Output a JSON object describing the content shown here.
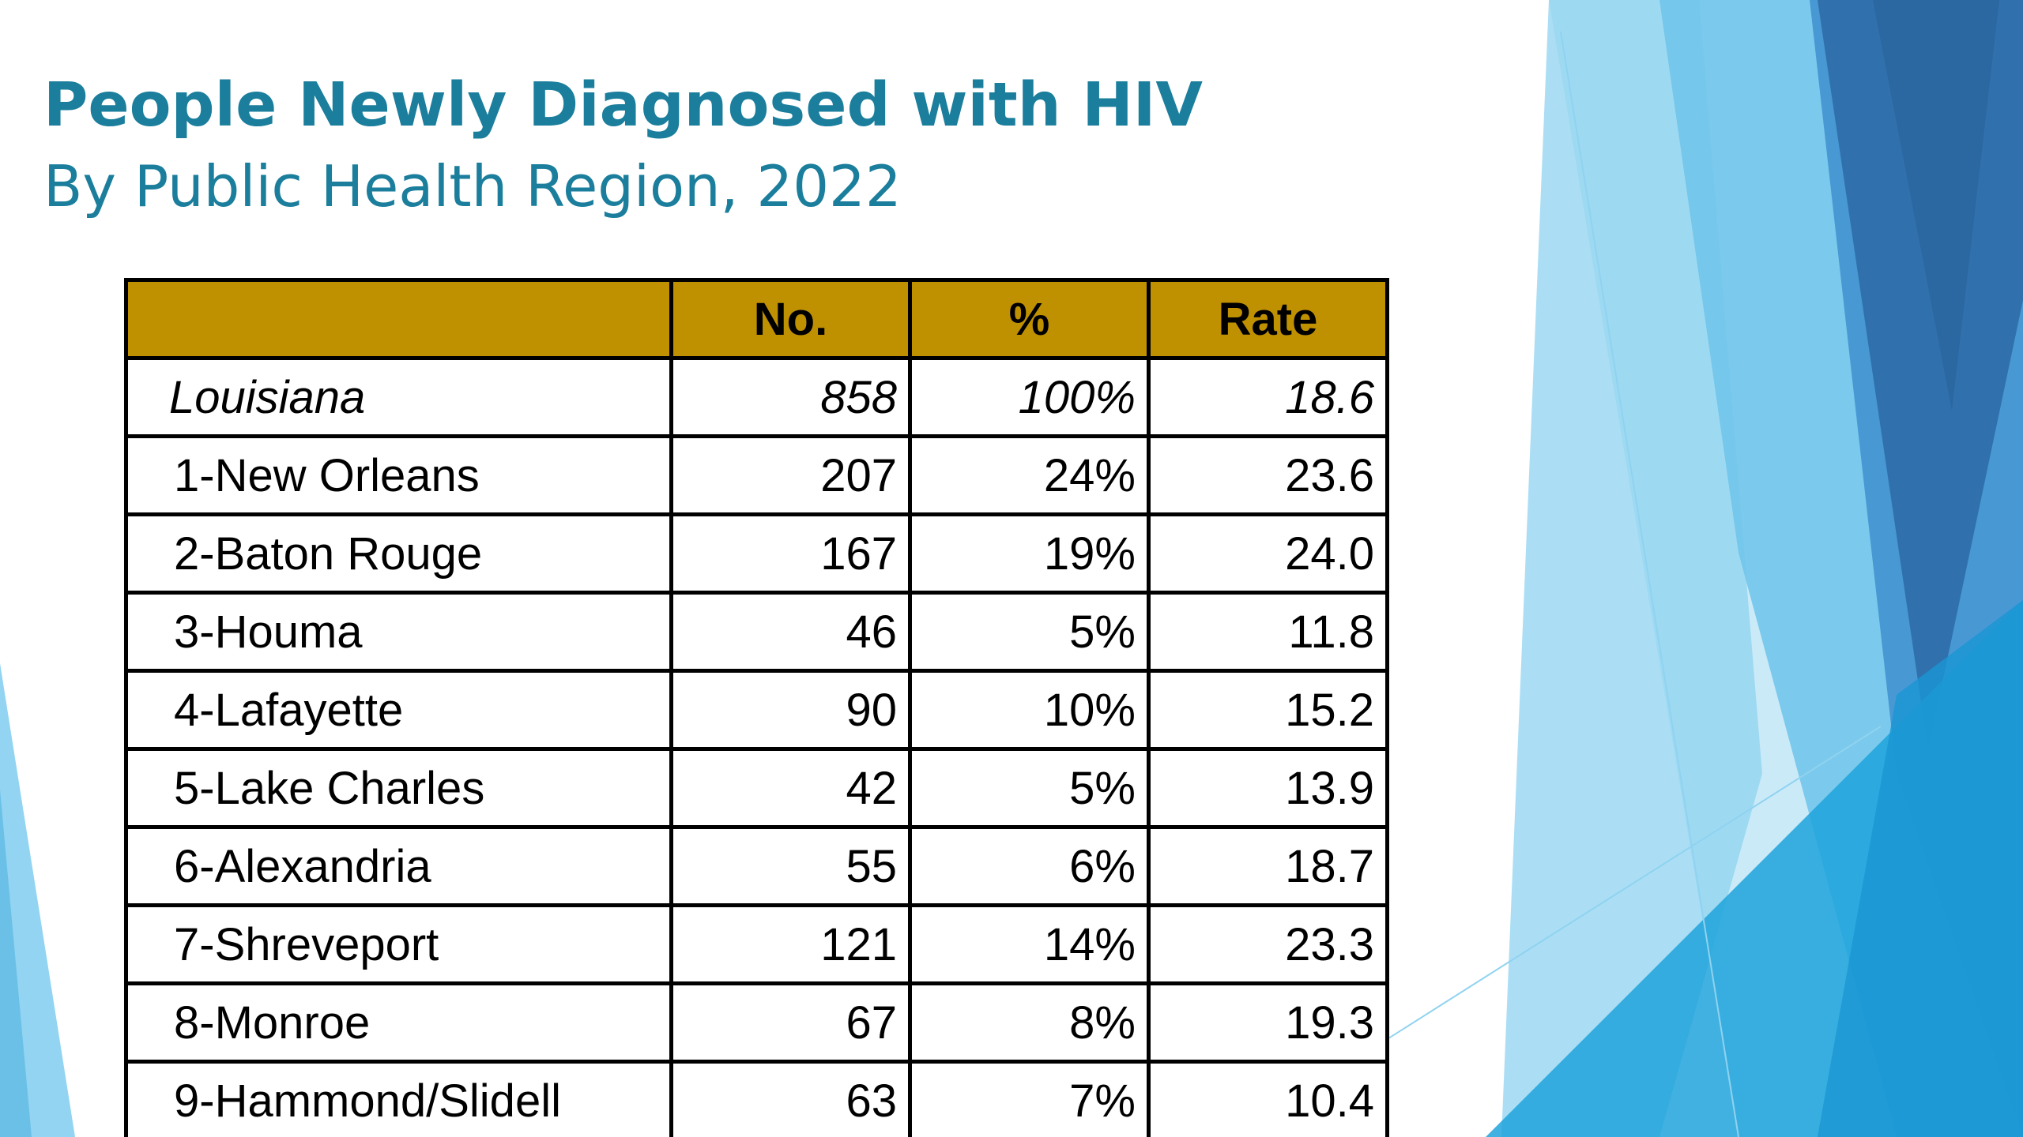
{
  "slide": {
    "title": "People Newly Diagnosed with HIV",
    "subtitle": "By Public Health Region, 2022",
    "colors": {
      "title": "#1a7e9c",
      "header_fill": "#bf9000",
      "decor_blue": "#2e75b6"
    }
  },
  "table": {
    "headers": [
      "",
      "No.",
      "%",
      "Rate"
    ],
    "total": {
      "region": "Louisiana",
      "no": "858",
      "pct": "100%",
      "rate": "18.6"
    },
    "rows": [
      {
        "region": "1-New Orleans",
        "no": "207",
        "pct": "24%",
        "rate": "23.6"
      },
      {
        "region": "2-Baton Rouge",
        "no": "167",
        "pct": "19%",
        "rate": "24.0"
      },
      {
        "region": "3-Houma",
        "no": "46",
        "pct": "5%",
        "rate": "11.8"
      },
      {
        "region": "4-Lafayette",
        "no": "90",
        "pct": "10%",
        "rate": "15.2"
      },
      {
        "region": "5-Lake Charles",
        "no": "42",
        "pct": "5%",
        "rate": "13.9"
      },
      {
        "region": "6-Alexandria",
        "no": "55",
        "pct": "6%",
        "rate": "18.7"
      },
      {
        "region": "7-Shreveport",
        "no": "121",
        "pct": "14%",
        "rate": "23.3"
      },
      {
        "region": "8-Monroe",
        "no": "67",
        "pct": "8%",
        "rate": "19.3"
      },
      {
        "region": "9-Hammond/Slidell",
        "no": "63",
        "pct": "7%",
        "rate": "10.4"
      }
    ]
  }
}
